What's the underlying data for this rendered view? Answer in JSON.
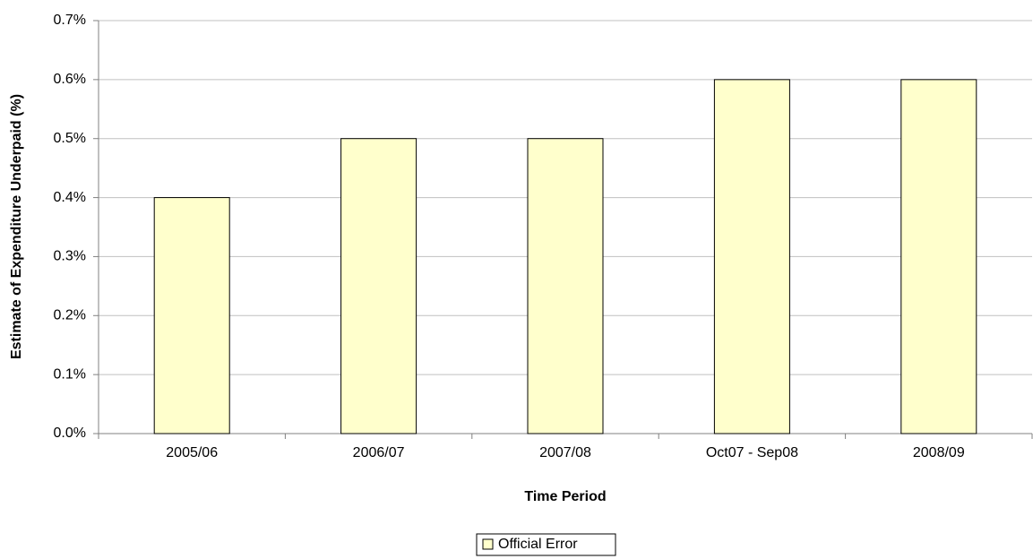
{
  "chart_data": {
    "type": "bar",
    "x_label": "Time Period",
    "y_label": "Estimate of Expenditure Underpaid (%)",
    "categories": [
      "2005/06",
      "2006/07",
      "2007/08",
      "Oct07 - Sep08",
      "2008/09"
    ],
    "series": [
      {
        "name": "Official Error",
        "color": "#ffffcc",
        "values": [
          0.4,
          0.5,
          0.5,
          0.6,
          0.6
        ]
      }
    ],
    "ylim": [
      0,
      0.7
    ],
    "yticks": [
      {
        "value": 0,
        "label": "0.0%"
      },
      {
        "value": 0.1,
        "label": "0.1%"
      },
      {
        "value": 0.2,
        "label": "0.2%"
      },
      {
        "value": 0.3,
        "label": "0.3%"
      },
      {
        "value": 0.4,
        "label": "0.4%"
      },
      {
        "value": 0.5,
        "label": "0.5%"
      },
      {
        "value": 0.6,
        "label": "0.6%"
      },
      {
        "value": 0.7,
        "label": "0.7%"
      }
    ],
    "grid": true,
    "legend": "bottom"
  }
}
